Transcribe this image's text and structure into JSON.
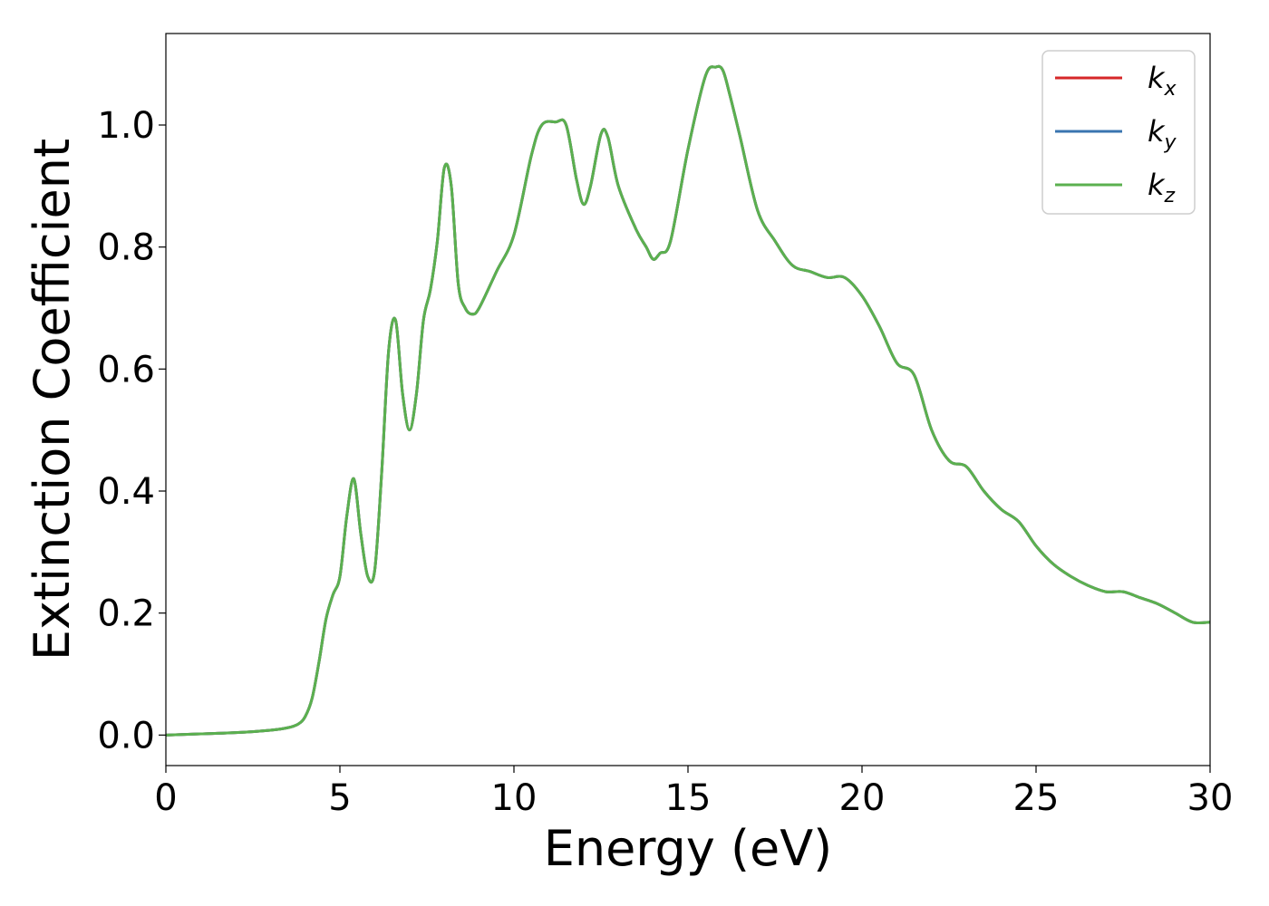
{
  "chart_data": {
    "type": "line",
    "title": "",
    "xlabel": "Energy (eV)",
    "ylabel": "Extinction Coefficient",
    "xlim": [
      0,
      30
    ],
    "ylim": [
      -0.05,
      1.15
    ],
    "xticks": [
      0,
      5,
      10,
      15,
      20,
      25,
      30
    ],
    "xtick_labels": [
      "0",
      "5",
      "10",
      "15",
      "20",
      "25",
      "30"
    ],
    "yticks": [
      0.0,
      0.2,
      0.4,
      0.6,
      0.8,
      1.0
    ],
    "ytick_labels": [
      "0.0",
      "0.2",
      "0.4",
      "0.6",
      "0.8",
      "1.0"
    ],
    "grid": false,
    "legend_position": "top-right",
    "series": [
      {
        "name": "k_x",
        "label_main": "k",
        "label_sub": "x",
        "color": "#d62728"
      },
      {
        "name": "k_y",
        "label_main": "k",
        "label_sub": "y",
        "color": "#3a75b0"
      },
      {
        "name": "k_z",
        "label_main": "k",
        "label_sub": "z",
        "color": "#5bb04f"
      }
    ],
    "x": [
      0,
      1,
      2,
      3,
      3.5,
      3.8,
      4.0,
      4.2,
      4.4,
      4.6,
      4.8,
      5.0,
      5.2,
      5.4,
      5.6,
      5.8,
      6.0,
      6.2,
      6.4,
      6.6,
      6.8,
      7.0,
      7.2,
      7.4,
      7.6,
      7.8,
      8.0,
      8.2,
      8.4,
      8.6,
      8.8,
      9.0,
      9.5,
      10.0,
      10.5,
      10.8,
      11.2,
      11.5,
      11.8,
      12.0,
      12.2,
      12.5,
      12.7,
      13.0,
      13.5,
      13.8,
      14.0,
      14.2,
      14.5,
      15.0,
      15.5,
      15.8,
      16.0,
      16.2,
      16.5,
      17.0,
      17.5,
      18.0,
      18.5,
      19.0,
      19.5,
      20.0,
      20.5,
      21.0,
      21.5,
      22.0,
      22.5,
      23.0,
      23.5,
      24.0,
      24.5,
      25.0,
      25.5,
      26.0,
      26.5,
      27.0,
      27.5,
      28.0,
      28.5,
      29.0,
      29.5,
      30.0
    ],
    "values": [
      0.0,
      0.002,
      0.004,
      0.008,
      0.012,
      0.018,
      0.03,
      0.06,
      0.12,
      0.19,
      0.23,
      0.26,
      0.36,
      0.42,
      0.33,
      0.26,
      0.27,
      0.43,
      0.63,
      0.68,
      0.56,
      0.5,
      0.56,
      0.68,
      0.73,
      0.81,
      0.93,
      0.9,
      0.74,
      0.7,
      0.69,
      0.7,
      0.76,
      0.82,
      0.95,
      1.0,
      1.005,
      1.0,
      0.91,
      0.87,
      0.9,
      0.985,
      0.98,
      0.9,
      0.83,
      0.8,
      0.78,
      0.79,
      0.81,
      0.96,
      1.08,
      1.095,
      1.09,
      1.05,
      0.98,
      0.86,
      0.81,
      0.77,
      0.76,
      0.75,
      0.75,
      0.72,
      0.67,
      0.61,
      0.59,
      0.5,
      0.45,
      0.44,
      0.4,
      0.37,
      0.35,
      0.31,
      0.28,
      0.26,
      0.245,
      0.235,
      0.235,
      0.225,
      0.215,
      0.2,
      0.185,
      0.185
    ]
  }
}
